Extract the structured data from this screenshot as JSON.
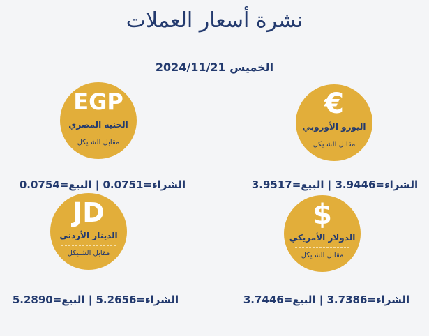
{
  "title": "نشرة أسعار العملات",
  "date": {
    "day": "الخميس",
    "value": "2024/11/21"
  },
  "vs_label": "مقابل الشـيكل",
  "colors": {
    "accent": "#e2ae3a",
    "text": "#233a6e",
    "background": "#f4f5f7"
  },
  "currencies": [
    {
      "symbol": "€",
      "name1": "اليورو",
      "name2": "الأوروبي",
      "rate": "الشراء=3.9446 | البيع=3.9517"
    },
    {
      "symbol": "EGP",
      "name1": "الجنيه",
      "name2": "المصري",
      "rate": "الشراء=0.0751 | البيع=0.0754"
    },
    {
      "symbol": "$",
      "name1": "الدولار",
      "name2": "الأمريكي",
      "rate": "الشراء=3.7386 | البيع=3.7446"
    },
    {
      "symbol": "JD",
      "name1": "الدينار",
      "name2": "الأردني",
      "rate": "الشراء=5.2656 | البيع=5.2890"
    }
  ]
}
